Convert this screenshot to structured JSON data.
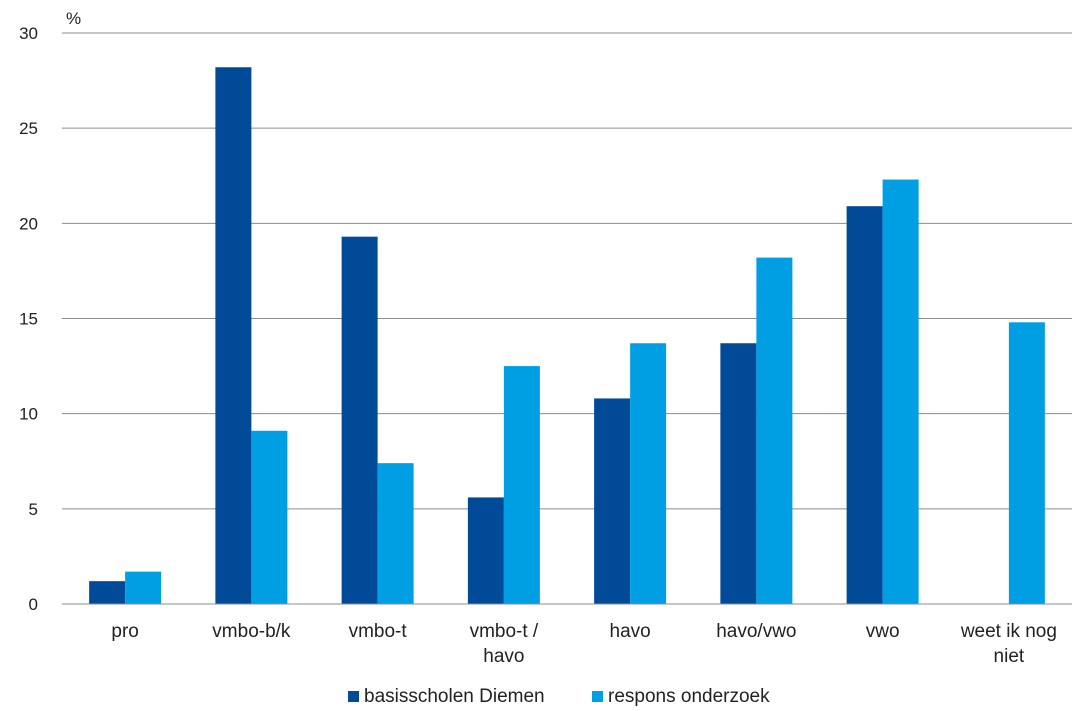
{
  "chart_data": {
    "type": "bar",
    "unit_label": "%",
    "categories": [
      [
        "pro"
      ],
      [
        "vmbo-b/k"
      ],
      [
        "vmbo-t"
      ],
      [
        "vmbo-t /",
        "havo"
      ],
      [
        "havo"
      ],
      [
        "havo/vwo"
      ],
      [
        "vwo"
      ],
      [
        "weet ik nog",
        "niet"
      ]
    ],
    "series": [
      {
        "name": "basisscholen Diemen",
        "color": "#004a98",
        "values": [
          1.2,
          28.2,
          19.3,
          5.6,
          10.8,
          13.7,
          20.9,
          0
        ]
      },
      {
        "name": "respons onderzoek",
        "color": "#009fe3",
        "values": [
          1.7,
          9.1,
          7.4,
          12.5,
          13.7,
          18.2,
          22.3,
          14.8
        ]
      }
    ],
    "ylim": [
      0,
      30
    ],
    "yticks": [
      0,
      5,
      10,
      15,
      20,
      25,
      30
    ],
    "grid": true,
    "legend_position": "bottom"
  }
}
